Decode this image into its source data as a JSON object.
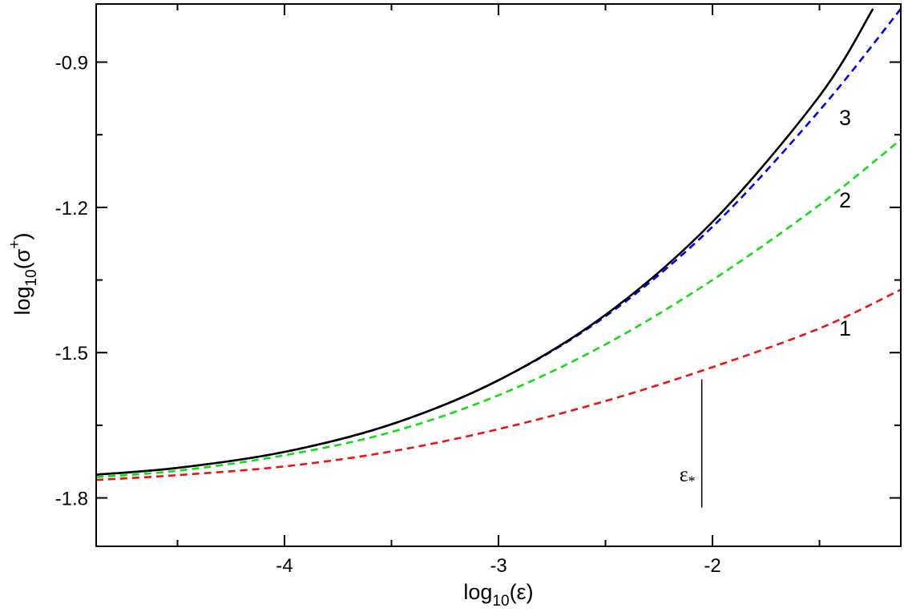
{
  "chart_data": {
    "type": "line",
    "xlabel": {
      "base": "log",
      "sub": "10",
      "arg": "(ε)"
    },
    "ylabel": {
      "base": "log",
      "sub": "10",
      "arg": "(σ",
      "sup": "+",
      "close": ")"
    },
    "xlim": [
      -4.88,
      -1.12
    ],
    "ylim": [
      -1.9,
      -0.78
    ],
    "x_major_ticks": [
      -4,
      -3,
      -2
    ],
    "x_tick_labels": [
      "-4",
      "-3",
      "-2"
    ],
    "x_minor_ticks": [
      -4.5,
      -3.5,
      -2.5,
      -1.5
    ],
    "y_major_ticks": [
      -1.8,
      -1.5,
      -1.2,
      -0.9
    ],
    "y_tick_labels": [
      "-1.8",
      "-1.5",
      "-1.2",
      "-0.9"
    ],
    "y_minor_ticks": [
      -1.65,
      -1.35,
      -1.05
    ],
    "grid": false,
    "series": [
      {
        "label": "",
        "color": "#000000",
        "dash": "solid",
        "x": [
          -4.88,
          -4.5,
          -4.0,
          -3.5,
          -3.0,
          -2.5,
          -2.0,
          -1.5,
          -1.25
        ],
        "y": [
          -1.752,
          -1.738,
          -1.705,
          -1.648,
          -1.557,
          -1.422,
          -1.23,
          -0.97,
          -0.79
        ]
      },
      {
        "label": "3",
        "color": "#0000ee",
        "dash": "dashed",
        "x": [
          -4.88,
          -4.5,
          -4.0,
          -3.5,
          -3.0,
          -2.5,
          -2.0,
          -1.5,
          -1.12
        ],
        "y": [
          -1.752,
          -1.738,
          -1.705,
          -1.648,
          -1.557,
          -1.425,
          -1.24,
          -1.0,
          -0.79
        ]
      },
      {
        "label": "2",
        "color": "#11dd11",
        "dash": "dashed",
        "x": [
          -4.88,
          -4.5,
          -4.0,
          -3.5,
          -3.0,
          -2.5,
          -2.0,
          -1.5,
          -1.12
        ],
        "y": [
          -1.757,
          -1.744,
          -1.712,
          -1.664,
          -1.588,
          -1.483,
          -1.35,
          -1.195,
          -1.06
        ]
      },
      {
        "label": "1",
        "color": "#ee1111",
        "dash": "dashed",
        "x": [
          -4.88,
          -4.5,
          -4.0,
          -3.5,
          -3.0,
          -2.5,
          -2.0,
          -1.5,
          -1.12
        ],
        "y": [
          -1.763,
          -1.753,
          -1.735,
          -1.704,
          -1.658,
          -1.6,
          -1.53,
          -1.45,
          -1.37
        ]
      }
    ],
    "curve_labels": [
      {
        "text": "3",
        "x": -1.38,
        "y": -1.03
      },
      {
        "text": "2",
        "x": -1.38,
        "y": -1.2
      },
      {
        "text": "1",
        "x": -1.38,
        "y": -1.465
      }
    ],
    "annotation": {
      "symbol": "ε",
      "subscript": "*",
      "line_x": -2.05,
      "line_y": [
        -1.555,
        -1.82
      ],
      "text_x": -2.08,
      "text_y": -1.765
    }
  }
}
